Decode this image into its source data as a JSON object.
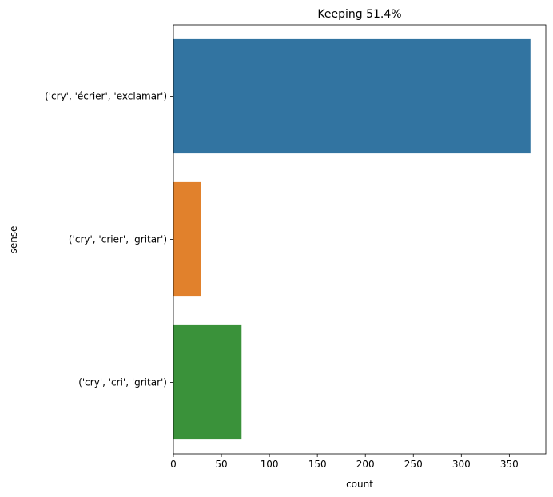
{
  "chart_data": {
    "type": "bar",
    "orientation": "horizontal",
    "title": "Keeping 51.4%",
    "xlabel": "count",
    "ylabel": "sense",
    "xlim": [
      0,
      388
    ],
    "xticks": [
      0,
      50,
      100,
      150,
      200,
      250,
      300,
      350
    ],
    "categories": [
      "('cry', 'écrier', 'exclamar')",
      "('cry', 'crier', 'gritar')",
      "('cry', 'cri', 'gritar')"
    ],
    "values": [
      372,
      29,
      71
    ],
    "colors": [
      "#3274a1",
      "#e1812c",
      "#3a923a"
    ],
    "grid": false,
    "legend": "none"
  }
}
